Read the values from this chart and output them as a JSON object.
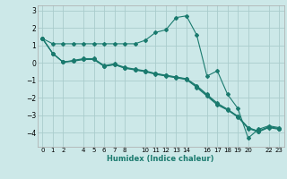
{
  "xlabel": "Humidex (Indice chaleur)",
  "background_color": "#cce8e8",
  "grid_color": "#aacccc",
  "line_color": "#1a7a6e",
  "xlim": [
    -0.5,
    23.5
  ],
  "ylim": [
    -4.8,
    3.3
  ],
  "yticks": [
    -4,
    -3,
    -2,
    -1,
    0,
    1,
    2,
    3
  ],
  "xtick_positions": [
    0,
    1,
    2,
    4,
    5,
    6,
    7,
    8,
    10,
    11,
    12,
    13,
    14,
    16,
    17,
    18,
    19,
    20,
    22,
    23
  ],
  "xtick_labels": [
    "0",
    "1",
    "2",
    "4",
    "5",
    "6",
    "7",
    "8",
    "10",
    "11",
    "12",
    "13",
    "14",
    "16",
    "17",
    "18",
    "19",
    "20",
    "22",
    "23"
  ],
  "lines": [
    {
      "x": [
        0,
        1,
        2,
        3,
        4,
        5,
        6,
        7,
        8,
        9,
        10,
        11,
        12,
        13,
        14,
        15,
        16,
        17,
        18,
        19,
        20,
        21,
        22,
        23
      ],
      "y": [
        1.4,
        1.1,
        1.1,
        1.1,
        1.1,
        1.1,
        1.1,
        1.1,
        1.1,
        1.1,
        1.3,
        1.75,
        1.9,
        2.6,
        2.7,
        1.6,
        -0.75,
        -0.45,
        -1.8,
        -2.6,
        -4.3,
        -3.8,
        -3.6,
        -3.7
      ]
    },
    {
      "x": [
        0,
        1,
        2,
        3,
        4,
        5,
        6,
        7,
        8,
        9,
        10,
        11,
        12,
        13,
        14,
        15,
        16,
        17,
        18,
        19,
        20,
        21,
        22,
        23
      ],
      "y": [
        1.4,
        0.55,
        0.05,
        0.1,
        0.2,
        0.2,
        -0.2,
        -0.1,
        -0.3,
        -0.4,
        -0.5,
        -0.65,
        -0.75,
        -0.85,
        -0.95,
        -1.4,
        -1.9,
        -2.4,
        -2.7,
        -3.1,
        -3.75,
        -3.95,
        -3.7,
        -3.8
      ]
    },
    {
      "x": [
        0,
        1,
        2,
        3,
        4,
        5,
        6,
        7,
        8,
        9,
        10,
        11,
        12,
        13,
        14,
        15,
        16,
        17,
        18,
        19,
        20,
        21,
        22,
        23
      ],
      "y": [
        1.4,
        0.55,
        0.05,
        0.15,
        0.25,
        0.25,
        -0.15,
        -0.05,
        -0.25,
        -0.35,
        -0.45,
        -0.6,
        -0.7,
        -0.8,
        -0.9,
        -1.3,
        -1.8,
        -2.3,
        -2.65,
        -3.05,
        -3.7,
        -3.9,
        -3.65,
        -3.75
      ]
    },
    {
      "x": [
        0,
        1,
        2,
        3,
        4,
        5,
        6,
        7,
        8,
        9,
        10,
        11,
        12,
        13,
        14,
        15,
        16,
        17,
        18,
        19,
        20,
        21,
        22,
        23
      ],
      "y": [
        1.4,
        0.55,
        0.05,
        0.12,
        0.22,
        0.22,
        -0.18,
        -0.08,
        -0.28,
        -0.38,
        -0.48,
        -0.62,
        -0.72,
        -0.82,
        -0.92,
        -1.35,
        -1.85,
        -2.35,
        -2.67,
        -3.07,
        -3.72,
        -3.92,
        -3.67,
        -3.77
      ]
    }
  ]
}
